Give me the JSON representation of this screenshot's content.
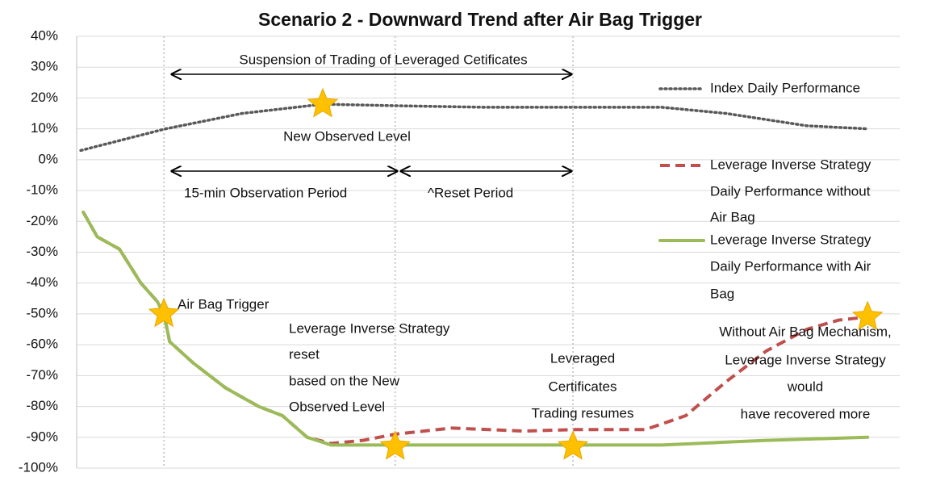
{
  "chart_data": {
    "type": "line",
    "title": "Scenario 2 - Downward Trend after Air Bag Trigger",
    "xlim": [
      0,
      100
    ],
    "ylim": [
      -100,
      40
    ],
    "yticks": [
      {
        "value": 40,
        "label": "40%"
      },
      {
        "value": 30,
        "label": "30%"
      },
      {
        "value": 20,
        "label": "20%"
      },
      {
        "value": 10,
        "label": "10%"
      },
      {
        "value": 0,
        "label": "0%"
      },
      {
        "value": -10,
        "label": "-10%"
      },
      {
        "value": -20,
        "label": "-20%"
      },
      {
        "value": -30,
        "label": "-30%"
      },
      {
        "value": -40,
        "label": "-40%"
      },
      {
        "value": -50,
        "label": "-50%"
      },
      {
        "value": -60,
        "label": "-60%"
      },
      {
        "value": -70,
        "label": "-70%"
      },
      {
        "value": -80,
        "label": "-80%"
      },
      {
        "value": -90,
        "label": "-90%"
      },
      {
        "value": -100,
        "label": "-100%"
      }
    ],
    "grid": true,
    "series": [
      {
        "name": [
          "Index Daily Performance"
        ],
        "color": "#595959",
        "style": "dotted",
        "x": [
          0.5,
          10.8,
          20.1,
          29.9,
          38.7,
          49.5,
          60.3,
          71.1,
          78.9,
          88.7,
          96.1
        ],
        "values": [
          3,
          10,
          15,
          18,
          17.5,
          17,
          17,
          17,
          15,
          11,
          10
        ]
      },
      {
        "name": [
          "Leverage Inverse Strategy",
          "Daily Performance without",
          "Air Bag"
        ],
        "color": "#c0504d",
        "style": "dashed",
        "x": [
          0.8,
          2.5,
          5.2,
          7.8,
          9.8,
          10.6,
          11.3,
          14.2,
          18.1,
          22.1,
          25,
          28,
          30.9,
          34.8,
          38.7,
          45.6,
          54.4,
          60.3,
          69.1,
          74,
          78.9,
          83.8,
          88.7,
          92.6,
          96.1
        ],
        "values": [
          -17,
          -25,
          -29,
          -40,
          -46,
          -50,
          -59,
          -66,
          -74,
          -80,
          -83,
          -90,
          -92,
          -91,
          -89,
          -87,
          -88,
          -87.5,
          -87.5,
          -83,
          -72,
          -62,
          -55,
          -52,
          -51
        ]
      },
      {
        "name": [
          "Leverage Inverse Strategy",
          "Daily Performance with Air",
          "Bag"
        ],
        "color": "#9bbb59",
        "style": "solid",
        "x": [
          0.8,
          2.5,
          5.2,
          7.8,
          9.8,
          10.6,
          11.3,
          14.2,
          18.1,
          22.1,
          25,
          28,
          30.9,
          38.7,
          49.5,
          60.3,
          71.1,
          83.8,
          96.1
        ],
        "values": [
          -17,
          -25,
          -29,
          -40,
          -46,
          -50,
          -59,
          -66,
          -74,
          -80,
          -83,
          -90,
          -92.5,
          -92.5,
          -92.5,
          -92.5,
          -92.5,
          -91,
          -90
        ]
      }
    ],
    "markers": [
      {
        "x": 29.9,
        "y": 18
      },
      {
        "x": 10.6,
        "y": -50
      },
      {
        "x": 38.7,
        "y": -93
      },
      {
        "x": 60.3,
        "y": -93
      },
      {
        "x": 96.1,
        "y": -51
      }
    ],
    "vlines": [
      10.6,
      38.7,
      60.3
    ],
    "annotations": [
      [
        "Suspension of Trading of Leveraged Cetificates"
      ],
      [
        "New Observed Level"
      ],
      [
        "15-min Observation Period"
      ],
      [
        "^Reset Period"
      ],
      [
        "Air Bag Trigger"
      ],
      [
        "Leverage Inverse Strategy",
        "reset",
        "based on the New",
        "Observed Level"
      ],
      [
        "Leveraged",
        "Certificates",
        "Trading resumes"
      ],
      [
        "Without Air Bag Mechanism,",
        "Leverage Inverse Strategy",
        "would",
        "have recovered more"
      ]
    ]
  }
}
